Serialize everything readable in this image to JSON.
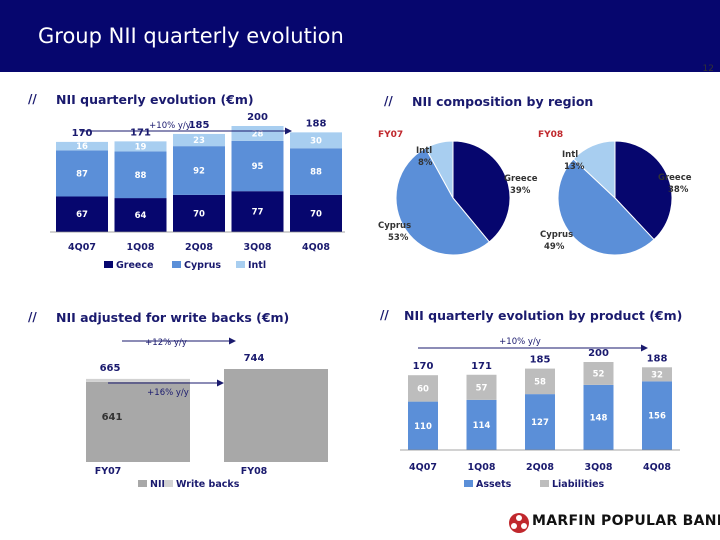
{
  "page": {
    "title": "Group NII quarterly evolution",
    "page_number": "12"
  },
  "colors": {
    "greece": "#06066e",
    "cyprus": "#5b8fd8",
    "intl": "#a8cef0",
    "nii": "#a8a8a8",
    "write_backs": "#d2d2d2",
    "assets": "#5b8fd8",
    "liabilities": "#bdbdbd"
  },
  "chart_data": [
    {
      "type": "bar",
      "id": "nii_quarterly",
      "title": "NII quarterly evolution (€m)",
      "categories": [
        "4Q07",
        "1Q08",
        "2Q08",
        "3Q08",
        "4Q08"
      ],
      "stacked": true,
      "series": [
        {
          "name": "Greece",
          "values": [
            67,
            64,
            70,
            77,
            70
          ],
          "labels": [
            "67",
            "64",
            "70",
            "77",
            "70"
          ]
        },
        {
          "name": "Cyprus",
          "values": [
            87,
            88,
            92,
            95,
            88
          ],
          "labels": [
            "87",
            "88",
            "92",
            "95",
            "88"
          ]
        },
        {
          "name": "Intl",
          "values": [
            16,
            19,
            23,
            28,
            30
          ],
          "labels": [
            "16",
            "19",
            "23",
            "28",
            "30"
          ]
        }
      ],
      "totals": [
        "170",
        "171",
        "185",
        "200",
        "188"
      ],
      "annotation": "+10% y/y",
      "legend": "bottom",
      "ylim": [
        0,
        200
      ]
    },
    {
      "type": "pie",
      "id": "nii_fy07",
      "title": "NII composition by region",
      "label": "FY07",
      "slices": [
        {
          "name": "Greece",
          "value": 39,
          "label": "39%"
        },
        {
          "name": "Cyprus",
          "value": 53,
          "label": "53%"
        },
        {
          "name": "Intl",
          "value": 8,
          "label": "8%"
        }
      ]
    },
    {
      "type": "pie",
      "id": "nii_fy08",
      "label": "FY08",
      "slices": [
        {
          "name": "Greece",
          "value": 38,
          "label": "38%"
        },
        {
          "name": "Cyprus",
          "value": 49,
          "label": "49%"
        },
        {
          "name": "Intl",
          "value": 13,
          "label": "13%"
        }
      ]
    },
    {
      "type": "bar",
      "id": "nii_adjusted",
      "title": "NII adjusted for write backs (€m)",
      "categories": [
        "FY07",
        "FY08"
      ],
      "stacked": true,
      "series": [
        {
          "name": "NII",
          "values": [
            641,
            744
          ]
        },
        {
          "name": "Write backs",
          "values": [
            24,
            0
          ]
        }
      ],
      "labels": {
        "fy07_total": "665",
        "fy07_nii": "641",
        "fy08_total": "744"
      },
      "annotations": [
        "+12% y/y",
        "+16% y/y"
      ],
      "legend": "bottom",
      "ylim": [
        0,
        744
      ]
    },
    {
      "type": "bar",
      "id": "nii_product",
      "title": "NII quarterly evolution by product (€m)",
      "categories": [
        "4Q07",
        "1Q08",
        "2Q08",
        "3Q08",
        "4Q08"
      ],
      "stacked": true,
      "series": [
        {
          "name": "Assets",
          "values": [
            110,
            114,
            127,
            148,
            156
          ],
          "labels": [
            "110",
            "114",
            "127",
            "148",
            "156"
          ]
        },
        {
          "name": "Liabilities",
          "values": [
            60,
            57,
            58,
            52,
            32
          ],
          "labels": [
            "60",
            "57",
            "58",
            "52",
            "32"
          ]
        }
      ],
      "totals": [
        "170",
        "171",
        "185",
        "200",
        "188"
      ],
      "annotation": "+10% y/y",
      "legend": "bottom",
      "ylim": [
        0,
        200
      ]
    }
  ],
  "sections": {
    "slash": "//"
  },
  "logo": {
    "text": "MARFIN POPULAR BANK",
    "icon": "bank-logo-icon"
  }
}
